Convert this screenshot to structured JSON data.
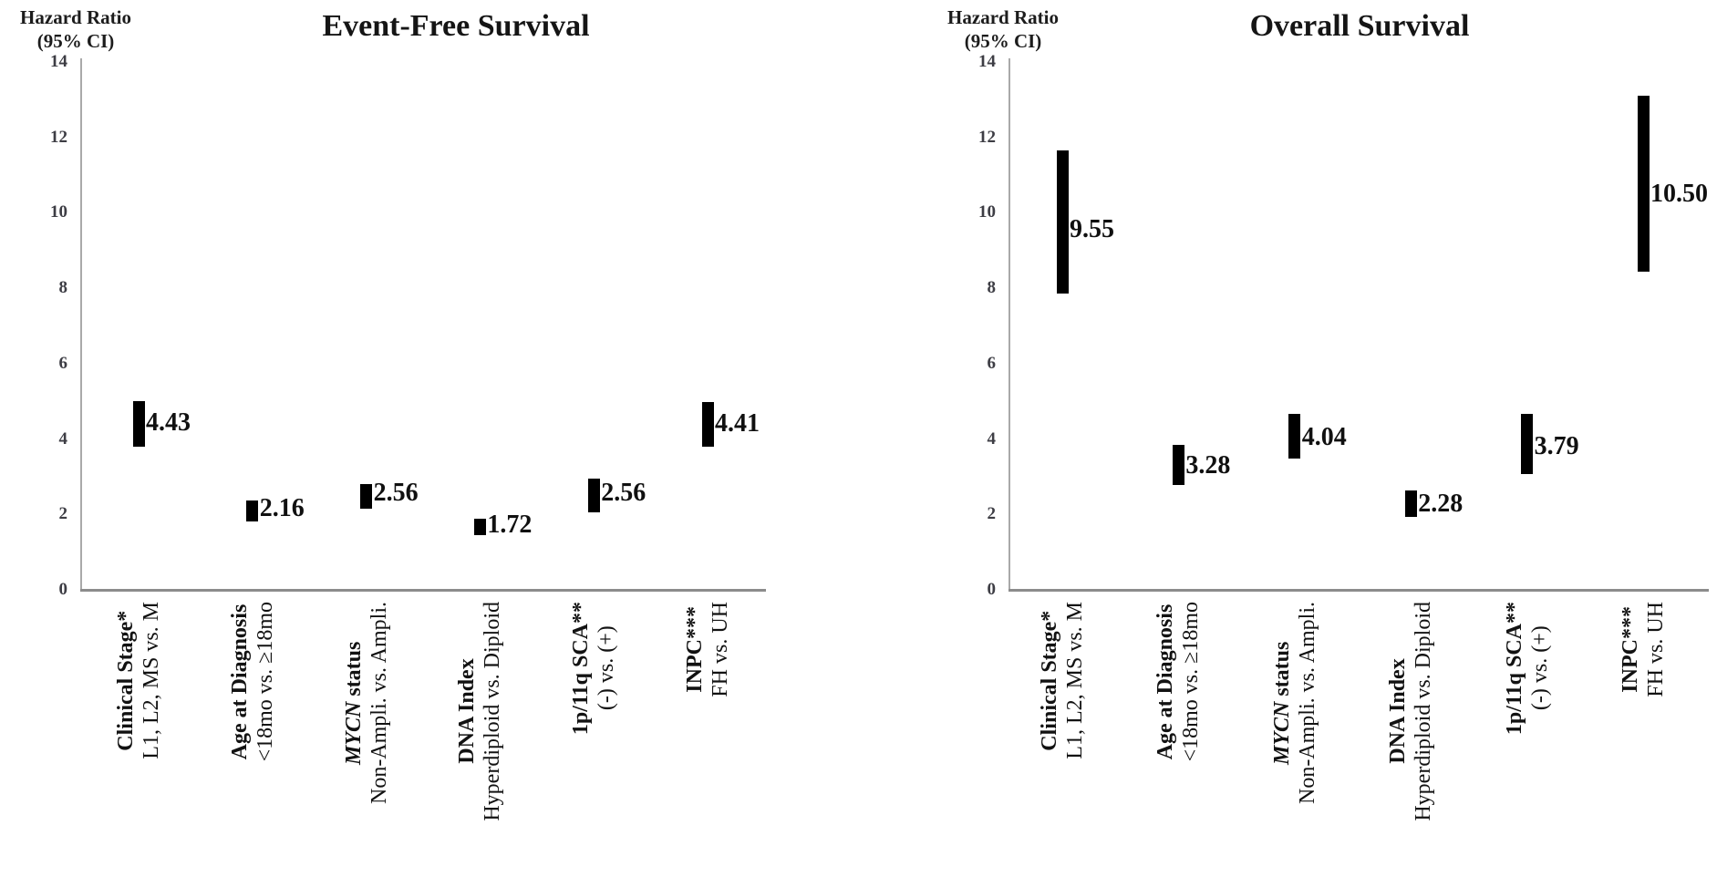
{
  "figure": {
    "background": "#ffffff",
    "colors": {
      "bar": "#000000",
      "axis_line": "#a9a9a9",
      "baseline": "#8c8c8c",
      "tick_text": "#3d3d44",
      "text": "#1c1c1c"
    }
  },
  "chart_data": [
    {
      "type": "bar",
      "subtype": "ci-range-forest-plot",
      "title": "Event-Free Survival",
      "ylabel": "Hazard Ratio (95% CI)",
      "ylabel_lines": [
        "Hazard Ratio",
        "(95% CI)"
      ],
      "ylim": [
        0,
        14
      ],
      "yticks": [
        0,
        2,
        4,
        6,
        8,
        10,
        12,
        14
      ],
      "grid": false,
      "legend": null,
      "categories": [
        {
          "label": "Clinical Stage*",
          "sublabel": "L1, L2, MS vs. M",
          "italic_first_word": false
        },
        {
          "label": "Age at Diagnosis",
          "sublabel": "<18mo vs. ≥18mo",
          "italic_first_word": false
        },
        {
          "label": "MYCN status",
          "sublabel": "Non-Ampli. vs. Ampli.",
          "italic_first_word": true
        },
        {
          "label": "DNA Index",
          "sublabel": "Hyperdiploid vs. Diploid",
          "italic_first_word": false
        },
        {
          "label": "1p/11q SCA**",
          "sublabel": "(-) vs. (+)",
          "italic_first_word": false
        },
        {
          "label": "INPC***",
          "sublabel": "FH vs. UH",
          "italic_first_word": false
        }
      ],
      "points": [
        {
          "hazard_ratio": 4.43,
          "label": "4.43",
          "ci_low": 3.8,
          "ci_high": 5.0
        },
        {
          "hazard_ratio": 2.16,
          "label": "2.16",
          "ci_low": 1.82,
          "ci_high": 2.37
        },
        {
          "hazard_ratio": 2.56,
          "label": "2.56",
          "ci_low": 2.16,
          "ci_high": 2.8
        },
        {
          "hazard_ratio": 1.72,
          "label": "1.72",
          "ci_low": 1.46,
          "ci_high": 1.88
        },
        {
          "hazard_ratio": 2.56,
          "label": "2.56",
          "ci_low": 2.06,
          "ci_high": 2.96
        },
        {
          "hazard_ratio": 4.41,
          "label": "4.41",
          "ci_low": 3.8,
          "ci_high": 4.98
        }
      ]
    },
    {
      "type": "bar",
      "subtype": "ci-range-forest-plot",
      "title": "Overall Survival",
      "ylabel": "Hazard Ratio (95% CI)",
      "ylabel_lines": [
        "Hazard Ratio",
        "(95% CI)"
      ],
      "ylim": [
        0,
        14
      ],
      "yticks": [
        0,
        2,
        4,
        6,
        8,
        10,
        12,
        14
      ],
      "grid": false,
      "legend": null,
      "categories": [
        {
          "label": "Clinical Stage*",
          "sublabel": "L1, L2, MS vs. M",
          "italic_first_word": false
        },
        {
          "label": "Age at Diagnosis",
          "sublabel": "<18mo vs. ≥18mo",
          "italic_first_word": false
        },
        {
          "label": "MYCN status",
          "sublabel": "Non-Ampli. vs. Ampli.",
          "italic_first_word": true
        },
        {
          "label": "DNA Index",
          "sublabel": "Hyperdiploid vs. Diploid",
          "italic_first_word": false
        },
        {
          "label": "1p/11q SCA**",
          "sublabel": "(-) vs. (+)",
          "italic_first_word": false
        },
        {
          "label": "INPC***",
          "sublabel": "FH vs. UH",
          "italic_first_word": false
        }
      ],
      "points": [
        {
          "hazard_ratio": 9.55,
          "label": "9.55",
          "ci_low": 7.85,
          "ci_high": 11.65
        },
        {
          "hazard_ratio": 3.28,
          "label": "3.28",
          "ci_low": 2.78,
          "ci_high": 3.85
        },
        {
          "hazard_ratio": 4.04,
          "label": "4.04",
          "ci_low": 3.47,
          "ci_high": 4.66
        },
        {
          "hazard_ratio": 2.28,
          "label": "2.28",
          "ci_low": 1.93,
          "ci_high": 2.63
        },
        {
          "hazard_ratio": 3.79,
          "label": "3.79",
          "ci_low": 3.07,
          "ci_high": 4.66
        },
        {
          "hazard_ratio": 10.5,
          "label": "10.50",
          "ci_low": 8.45,
          "ci_high": 13.1
        }
      ]
    }
  ]
}
